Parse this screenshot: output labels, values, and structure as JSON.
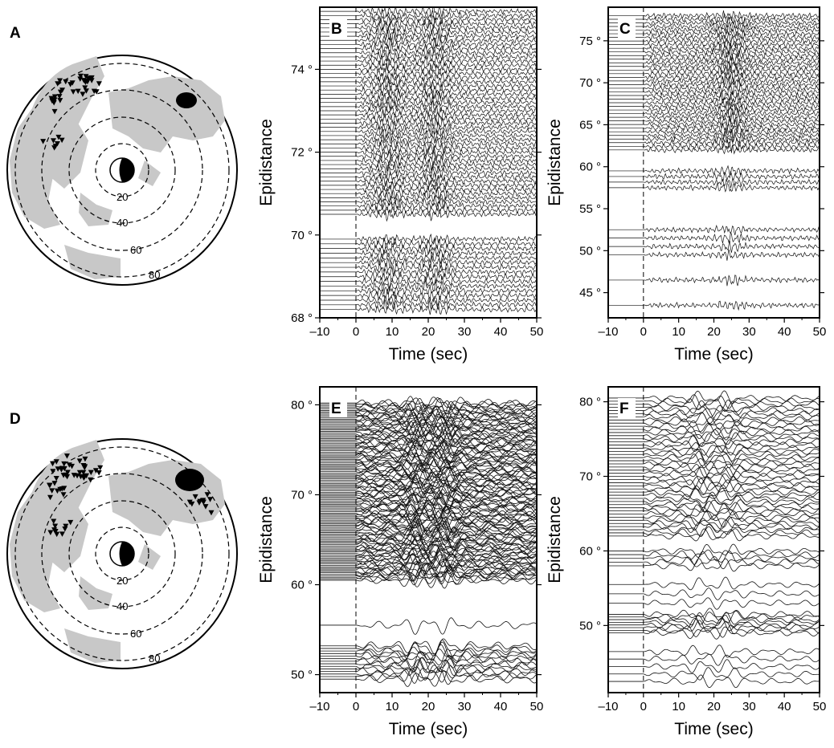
{
  "figure": {
    "maps": [
      {
        "label": "A",
        "ring_labels": [
          "20",
          "40",
          "60",
          "80"
        ],
        "ring_degrees": [
          20,
          40,
          60,
          80
        ]
      },
      {
        "label": "D",
        "ring_labels": [
          "20",
          "40",
          "60",
          "80"
        ],
        "ring_degrees": [
          20,
          40,
          60,
          80
        ]
      }
    ]
  },
  "colors": {
    "land": "#c8c8c8",
    "trace": "#111111",
    "frame": "#000000"
  },
  "chart_data": [
    {
      "panel": "B",
      "type": "line",
      "xlabel": "Time (sec)",
      "ylabel": "Epidistance",
      "xlim": [
        -10,
        50
      ],
      "ylim": [
        68,
        75.5
      ],
      "xticks": [
        -10,
        0,
        10,
        20,
        30,
        40,
        50
      ],
      "xtick_labels": [
        "–10",
        "0",
        "10",
        "20",
        "30",
        "40",
        "50"
      ],
      "yticks": [
        68,
        70,
        72,
        74
      ],
      "ytick_labels": [
        "68 °",
        "70 °",
        "72 °",
        "74 °"
      ],
      "onset_time": 0,
      "trace_groups": [
        {
          "from": 68.2,
          "to": 69.9,
          "count": 16
        },
        {
          "from": 70.5,
          "to": 75.4,
          "count": 50
        }
      ],
      "burst_times": [
        9,
        22
      ]
    },
    {
      "panel": "C",
      "type": "line",
      "xlabel": "Time (sec)",
      "ylabel": "Epidistance",
      "xlim": [
        -10,
        50
      ],
      "ylim": [
        42,
        79
      ],
      "xticks": [
        -10,
        0,
        10,
        20,
        30,
        40,
        50
      ],
      "xtick_labels": [
        "–10",
        "0",
        "10",
        "20",
        "30",
        "40",
        "50"
      ],
      "yticks": [
        45,
        50,
        55,
        60,
        65,
        70,
        75
      ],
      "ytick_labels": [
        "45 °",
        "50 °",
        "55 °",
        "60 °",
        "65 °",
        "70 °",
        "75 °"
      ],
      "onset_time": 0,
      "trace_groups": [
        {
          "from": 43.5,
          "to": 46.5,
          "count": 2
        },
        {
          "from": 49.5,
          "to": 52.5,
          "count": 4
        },
        {
          "from": 57.5,
          "to": 59.5,
          "count": 4
        },
        {
          "from": 62,
          "to": 78,
          "count": 38
        }
      ],
      "burst_times": [
        25
      ]
    },
    {
      "panel": "E",
      "type": "line",
      "xlabel": "Time (sec)",
      "ylabel": "Epidistance",
      "xlim": [
        -10,
        50
      ],
      "ylim": [
        48,
        82
      ],
      "xticks": [
        -10,
        0,
        10,
        20,
        30,
        40,
        50
      ],
      "xtick_labels": [
        "–10",
        "0",
        "10",
        "20",
        "30",
        "40",
        "50"
      ],
      "yticks": [
        50,
        60,
        70,
        80
      ],
      "ytick_labels": [
        "50 °",
        "60 °",
        "70 °",
        "80 °"
      ],
      "onset_time": 0,
      "trace_groups": [
        {
          "from": 49.5,
          "to": 53.2,
          "count": 14
        },
        {
          "from": 55.5,
          "to": 55.5,
          "count": 1
        },
        {
          "from": 60.5,
          "to": 80.2,
          "count": 120
        }
      ],
      "burst_times": [
        17,
        25
      ]
    },
    {
      "panel": "F",
      "type": "line",
      "xlabel": "Time (sec)",
      "ylabel": "Epidistance",
      "xlim": [
        -10,
        50
      ],
      "ylim": [
        41,
        82
      ],
      "xticks": [
        -10,
        0,
        10,
        20,
        30,
        40,
        50
      ],
      "xtick_labels": [
        "–10",
        "0",
        "10",
        "20",
        "30",
        "40",
        "50"
      ],
      "yticks": [
        50,
        60,
        70,
        80
      ],
      "ytick_labels": [
        "50 °",
        "60 °",
        "70 °",
        "80 °"
      ],
      "onset_time": 0,
      "trace_groups": [
        {
          "from": 42.5,
          "to": 46.5,
          "count": 5
        },
        {
          "from": 49,
          "to": 51.5,
          "count": 8
        },
        {
          "from": 53,
          "to": 55.5,
          "count": 3
        },
        {
          "from": 58,
          "to": 60,
          "count": 5
        },
        {
          "from": 62,
          "to": 80.5,
          "count": 45
        }
      ],
      "burst_times": [
        16,
        24
      ]
    }
  ]
}
